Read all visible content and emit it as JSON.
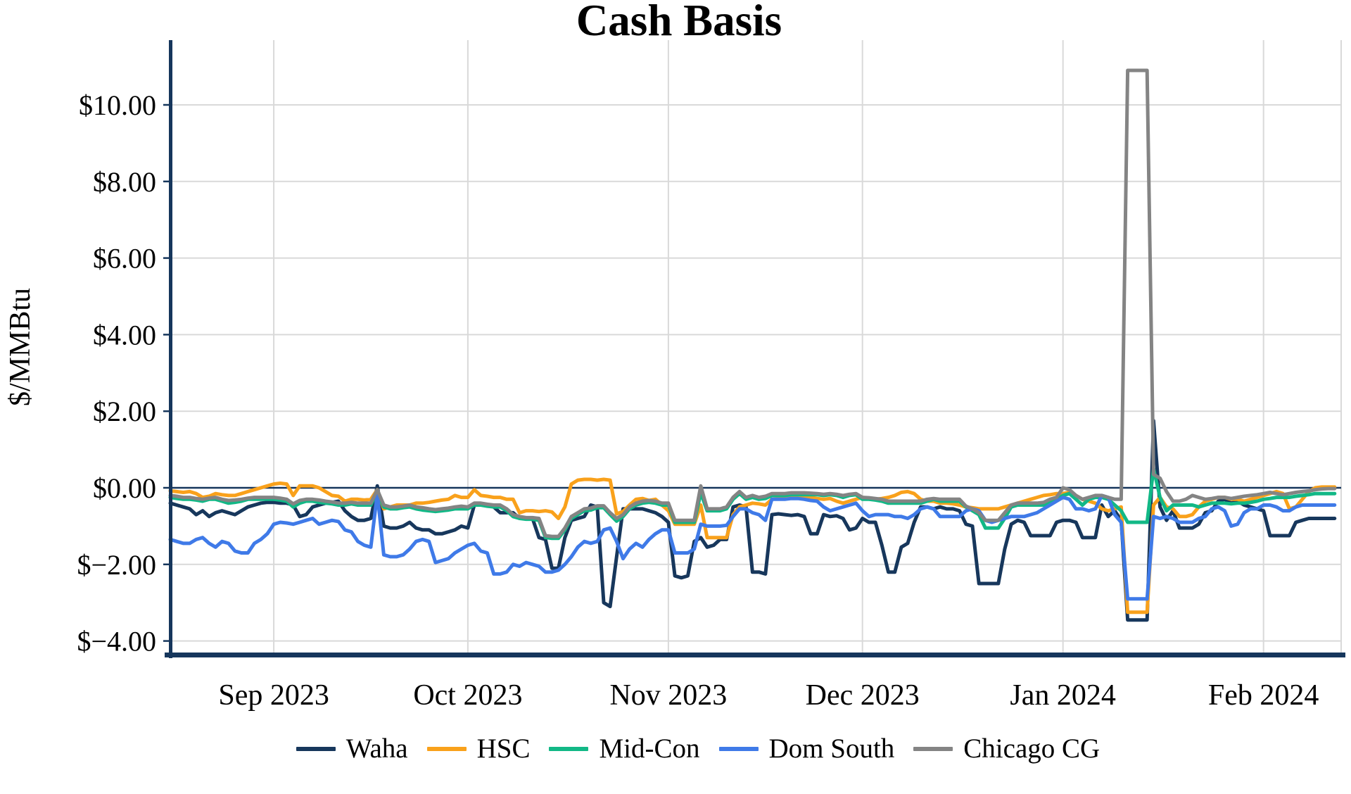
{
  "title": "Cash Basis",
  "y_axis": {
    "label": "$/MMBtu"
  },
  "colors": {
    "axis": "#16365C",
    "gridline": "#D9D9D9",
    "zero_line": "#16365C",
    "text": "#000000"
  },
  "chart_data": {
    "type": "line",
    "title": "Cash Basis",
    "ylabel": "$/MMBtu",
    "x_start": "2023-08-16",
    "x_end": "2024-02-12",
    "frequency": "daily",
    "n_points": 181,
    "ylim": [
      -4.3,
      11.7
    ],
    "grid": true,
    "legend_position": "bottom",
    "y_ticks": {
      "values": [
        10,
        8,
        6,
        4,
        2,
        0,
        -2,
        -4
      ],
      "labels": [
        "$10.00",
        "$8.00",
        "$6.00",
        "$4.00",
        "$2.00",
        "$0.00",
        "$−2.00",
        "$−4.00"
      ]
    },
    "x_ticks": [
      {
        "label": "Sep 2023",
        "day_index": 16
      },
      {
        "label": "Oct 2023",
        "day_index": 46
      },
      {
        "label": "Nov 2023",
        "day_index": 77
      },
      {
        "label": "Dec 2023",
        "day_index": 107
      },
      {
        "label": "Jan 2024",
        "day_index": 138
      },
      {
        "label": "Feb 2024",
        "day_index": 169
      }
    ],
    "series": [
      {
        "name": "Waha",
        "color": "#17375C",
        "values": [
          -0.4,
          -0.45,
          -0.5,
          -0.55,
          -0.7,
          -0.6,
          -0.75,
          -0.65,
          -0.6,
          -0.65,
          -0.7,
          -0.6,
          -0.5,
          -0.45,
          -0.4,
          -0.38,
          -0.38,
          -0.4,
          -0.4,
          -0.45,
          -0.75,
          -0.7,
          -0.5,
          -0.45,
          -0.4,
          -0.38,
          -0.35,
          -0.6,
          -0.75,
          -0.85,
          -0.85,
          -0.8,
          0.05,
          -1.0,
          -1.05,
          -1.05,
          -1.0,
          -0.9,
          -1.05,
          -1.1,
          -1.1,
          -1.2,
          -1.2,
          -1.15,
          -1.1,
          -1.0,
          -1.05,
          -0.45,
          -0.45,
          -0.45,
          -0.5,
          -0.65,
          -0.65,
          -0.65,
          -0.8,
          -0.8,
          -0.8,
          -1.3,
          -1.35,
          -2.1,
          -2.1,
          -1.3,
          -0.85,
          -0.8,
          -0.75,
          -0.45,
          -0.5,
          -3.0,
          -3.1,
          -1.8,
          -0.55,
          -0.55,
          -0.55,
          -0.55,
          -0.6,
          -0.65,
          -0.75,
          -0.9,
          -2.3,
          -2.35,
          -2.3,
          -1.4,
          -1.3,
          -1.55,
          -1.5,
          -1.35,
          -1.35,
          -0.5,
          -0.45,
          -0.5,
          -2.2,
          -2.2,
          -2.25,
          -0.7,
          -0.68,
          -0.7,
          -0.72,
          -0.7,
          -0.75,
          -1.2,
          -1.2,
          -0.7,
          -0.75,
          -0.73,
          -0.8,
          -1.1,
          -1.05,
          -0.8,
          -0.9,
          -0.9,
          -1.5,
          -2.2,
          -2.2,
          -1.55,
          -1.45,
          -0.9,
          -0.5,
          -0.5,
          -0.55,
          -0.5,
          -0.55,
          -0.55,
          -0.6,
          -0.95,
          -1.0,
          -2.5,
          -2.5,
          -2.5,
          -2.5,
          -1.6,
          -0.95,
          -0.85,
          -0.9,
          -1.25,
          -1.25,
          -1.25,
          -1.25,
          -0.9,
          -0.85,
          -0.85,
          -0.9,
          -1.3,
          -1.3,
          -1.3,
          -0.45,
          -0.75,
          -0.6,
          -0.85,
          -3.45,
          -3.45,
          -3.45,
          -3.45,
          1.75,
          -0.5,
          -0.85,
          -0.6,
          -1.05,
          -1.05,
          -1.05,
          -0.95,
          -0.65,
          -0.6,
          -0.35,
          -0.3,
          -0.4,
          -0.35,
          -0.45,
          -0.5,
          -0.55,
          -0.6,
          -1.25,
          -1.25,
          -1.25,
          -1.25,
          -0.9,
          -0.85,
          -0.8,
          -0.8,
          -0.8,
          -0.8,
          -0.8
        ]
      },
      {
        "name": "HSC",
        "color": "#F9A11B",
        "values": [
          -0.08,
          -0.1,
          -0.12,
          -0.1,
          -0.15,
          -0.25,
          -0.22,
          -0.15,
          -0.18,
          -0.2,
          -0.2,
          -0.15,
          -0.1,
          -0.05,
          0.0,
          0.05,
          0.1,
          0.12,
          0.1,
          -0.2,
          0.05,
          0.05,
          0.05,
          0.0,
          -0.1,
          -0.2,
          -0.22,
          -0.35,
          -0.3,
          -0.3,
          -0.32,
          -0.3,
          -0.05,
          -0.55,
          -0.5,
          -0.45,
          -0.45,
          -0.45,
          -0.4,
          -0.4,
          -0.38,
          -0.35,
          -0.32,
          -0.3,
          -0.2,
          -0.25,
          -0.25,
          -0.05,
          -0.2,
          -0.22,
          -0.25,
          -0.25,
          -0.3,
          -0.3,
          -0.65,
          -0.6,
          -0.6,
          -0.62,
          -0.6,
          -0.63,
          -0.8,
          -0.5,
          0.1,
          0.2,
          0.22,
          0.22,
          0.2,
          0.22,
          0.2,
          -0.68,
          -0.62,
          -0.45,
          -0.3,
          -0.28,
          -0.33,
          -0.3,
          -0.45,
          -0.6,
          -0.95,
          -0.95,
          -0.95,
          -0.95,
          -0.45,
          -1.3,
          -1.3,
          -1.3,
          -1.3,
          -0.7,
          -0.5,
          -0.45,
          -0.4,
          -0.42,
          -0.45,
          -0.3,
          -0.28,
          -0.28,
          -0.25,
          -0.25,
          -0.25,
          -0.25,
          -0.28,
          -0.3,
          -0.28,
          -0.35,
          -0.4,
          -0.35,
          -0.3,
          -0.25,
          -0.28,
          -0.3,
          -0.28,
          -0.25,
          -0.2,
          -0.12,
          -0.1,
          -0.15,
          -0.3,
          -0.35,
          -0.35,
          -0.4,
          -0.4,
          -0.42,
          -0.45,
          -0.5,
          -0.52,
          -0.55,
          -0.55,
          -0.55,
          -0.55,
          -0.5,
          -0.45,
          -0.4,
          -0.35,
          -0.3,
          -0.25,
          -0.2,
          -0.18,
          -0.15,
          -0.15,
          -0.12,
          -0.2,
          -0.3,
          -0.35,
          -0.4,
          -0.55,
          -0.6,
          -0.55,
          -0.5,
          -3.25,
          -3.25,
          -3.25,
          -3.25,
          -0.45,
          -0.25,
          -0.5,
          -0.55,
          -0.75,
          -0.75,
          -0.7,
          -0.5,
          -0.35,
          -0.3,
          -0.25,
          -0.25,
          -0.3,
          -0.3,
          -0.35,
          -0.3,
          -0.25,
          -0.2,
          -0.15,
          -0.1,
          -0.15,
          -0.55,
          -0.5,
          -0.3,
          -0.1,
          0.0,
          0.02,
          0.02,
          0.02
        ]
      },
      {
        "name": "Mid-Con",
        "color": "#12B886",
        "values": [
          -0.25,
          -0.28,
          -0.3,
          -0.3,
          -0.32,
          -0.35,
          -0.3,
          -0.3,
          -0.35,
          -0.4,
          -0.38,
          -0.35,
          -0.3,
          -0.3,
          -0.3,
          -0.3,
          -0.3,
          -0.32,
          -0.35,
          -0.5,
          -0.4,
          -0.35,
          -0.35,
          -0.38,
          -0.4,
          -0.42,
          -0.45,
          -0.45,
          -0.42,
          -0.45,
          -0.45,
          -0.45,
          -0.1,
          -0.5,
          -0.55,
          -0.55,
          -0.52,
          -0.5,
          -0.55,
          -0.58,
          -0.6,
          -0.62,
          -0.6,
          -0.58,
          -0.55,
          -0.55,
          -0.55,
          -0.45,
          -0.45,
          -0.48,
          -0.5,
          -0.5,
          -0.6,
          -0.75,
          -0.8,
          -0.82,
          -0.82,
          -0.85,
          -1.3,
          -1.32,
          -1.32,
          -1.1,
          -0.8,
          -0.7,
          -0.6,
          -0.58,
          -0.52,
          -0.52,
          -0.7,
          -0.87,
          -0.75,
          -0.55,
          -0.45,
          -0.4,
          -0.38,
          -0.4,
          -0.45,
          -0.45,
          -0.9,
          -0.9,
          -0.9,
          -0.9,
          -0.13,
          -0.6,
          -0.6,
          -0.6,
          -0.55,
          -0.3,
          -0.15,
          -0.3,
          -0.25,
          -0.3,
          -0.28,
          -0.2,
          -0.2,
          -0.2,
          -0.18,
          -0.18,
          -0.18,
          -0.18,
          -0.18,
          -0.2,
          -0.18,
          -0.2,
          -0.25,
          -0.2,
          -0.18,
          -0.3,
          -0.3,
          -0.32,
          -0.35,
          -0.4,
          -0.4,
          -0.4,
          -0.4,
          -0.4,
          -0.4,
          -0.35,
          -0.3,
          -0.35,
          -0.35,
          -0.35,
          -0.35,
          -0.5,
          -0.6,
          -0.7,
          -1.05,
          -1.05,
          -1.05,
          -0.8,
          -0.5,
          -0.45,
          -0.45,
          -0.45,
          -0.45,
          -0.45,
          -0.35,
          -0.3,
          -0.2,
          -0.15,
          -0.3,
          -0.45,
          -0.3,
          -0.25,
          -0.25,
          -0.3,
          -0.45,
          -0.6,
          -0.9,
          -0.9,
          -0.9,
          -0.9,
          0.5,
          -0.25,
          -0.6,
          -0.45,
          -0.45,
          -0.45,
          -0.45,
          -0.5,
          -0.45,
          -0.4,
          -0.4,
          -0.4,
          -0.42,
          -0.4,
          -0.4,
          -0.38,
          -0.35,
          -0.3,
          -0.28,
          -0.25,
          -0.25,
          -0.25,
          -0.22,
          -0.2,
          -0.18,
          -0.15,
          -0.15,
          -0.15,
          -0.15
        ]
      },
      {
        "name": "Dom South",
        "color": "#3F7AE8",
        "values": [
          -1.35,
          -1.4,
          -1.45,
          -1.45,
          -1.35,
          -1.3,
          -1.45,
          -1.55,
          -1.4,
          -1.45,
          -1.65,
          -1.7,
          -1.7,
          -1.45,
          -1.35,
          -1.2,
          -0.95,
          -0.9,
          -0.92,
          -0.95,
          -0.9,
          -0.85,
          -0.8,
          -0.95,
          -0.9,
          -0.85,
          -0.88,
          -1.1,
          -1.15,
          -1.4,
          -1.5,
          -1.55,
          -0.15,
          -1.75,
          -1.8,
          -1.8,
          -1.75,
          -1.6,
          -1.4,
          -1.35,
          -1.4,
          -1.95,
          -1.9,
          -1.85,
          -1.7,
          -1.6,
          -1.5,
          -1.45,
          -1.65,
          -1.7,
          -2.25,
          -2.25,
          -2.2,
          -2.0,
          -2.05,
          -1.95,
          -2.0,
          -2.05,
          -2.2,
          -2.2,
          -2.15,
          -2.0,
          -1.8,
          -1.55,
          -1.4,
          -1.45,
          -1.4,
          -1.1,
          -1.05,
          -1.4,
          -1.85,
          -1.6,
          -1.45,
          -1.55,
          -1.35,
          -1.2,
          -1.1,
          -1.1,
          -1.7,
          -1.7,
          -1.7,
          -1.6,
          -0.95,
          -1.0,
          -1.0,
          -1.0,
          -0.98,
          -0.75,
          -0.55,
          -0.55,
          -0.65,
          -0.7,
          -0.85,
          -0.3,
          -0.3,
          -0.3,
          -0.28,
          -0.28,
          -0.3,
          -0.33,
          -0.35,
          -0.5,
          -0.6,
          -0.55,
          -0.5,
          -0.45,
          -0.4,
          -0.6,
          -0.75,
          -0.7,
          -0.7,
          -0.7,
          -0.75,
          -0.75,
          -0.8,
          -0.7,
          -0.55,
          -0.5,
          -0.55,
          -0.75,
          -0.75,
          -0.75,
          -0.75,
          -0.6,
          -0.55,
          -0.6,
          -0.85,
          -0.9,
          -0.85,
          -0.8,
          -0.75,
          -0.75,
          -0.75,
          -0.7,
          -0.65,
          -0.55,
          -0.45,
          -0.35,
          -0.25,
          -0.3,
          -0.55,
          -0.55,
          -0.6,
          -0.55,
          -0.2,
          -0.25,
          -0.7,
          -0.9,
          -2.9,
          -2.9,
          -2.9,
          -2.9,
          -0.75,
          -0.8,
          -0.75,
          -0.8,
          -0.9,
          -0.9,
          -0.9,
          -0.8,
          -0.75,
          -0.55,
          -0.5,
          -0.6,
          -1.0,
          -0.95,
          -0.65,
          -0.55,
          -0.55,
          -0.45,
          -0.45,
          -0.5,
          -0.6,
          -0.6,
          -0.5,
          -0.45,
          -0.45,
          -0.45,
          -0.45,
          -0.45,
          -0.45
        ]
      },
      {
        "name": "Chicago CG",
        "color": "#848484",
        "values": [
          -0.2,
          -0.22,
          -0.25,
          -0.25,
          -0.28,
          -0.3,
          -0.27,
          -0.25,
          -0.3,
          -0.33,
          -0.32,
          -0.3,
          -0.27,
          -0.25,
          -0.25,
          -0.25,
          -0.25,
          -0.27,
          -0.3,
          -0.42,
          -0.33,
          -0.3,
          -0.3,
          -0.32,
          -0.35,
          -0.37,
          -0.4,
          -0.4,
          -0.38,
          -0.4,
          -0.4,
          -0.4,
          -0.05,
          -0.45,
          -0.5,
          -0.5,
          -0.48,
          -0.45,
          -0.5,
          -0.52,
          -0.55,
          -0.57,
          -0.55,
          -0.53,
          -0.5,
          -0.48,
          -0.5,
          -0.4,
          -0.4,
          -0.43,
          -0.45,
          -0.45,
          -0.55,
          -0.7,
          -0.75,
          -0.78,
          -0.78,
          -0.8,
          -1.25,
          -1.27,
          -1.27,
          -1.05,
          -0.75,
          -0.65,
          -0.55,
          -0.53,
          -0.47,
          -0.47,
          -0.65,
          -0.8,
          -0.7,
          -0.5,
          -0.4,
          -0.35,
          -0.33,
          -0.35,
          -0.4,
          -0.4,
          -0.85,
          -0.85,
          -0.85,
          -0.85,
          0.05,
          -0.55,
          -0.55,
          -0.55,
          -0.5,
          -0.25,
          -0.1,
          -0.25,
          -0.2,
          -0.25,
          -0.22,
          -0.15,
          -0.15,
          -0.15,
          -0.13,
          -0.13,
          -0.13,
          -0.14,
          -0.15,
          -0.17,
          -0.15,
          -0.17,
          -0.2,
          -0.17,
          -0.15,
          -0.25,
          -0.26,
          -0.28,
          -0.3,
          -0.35,
          -0.35,
          -0.35,
          -0.35,
          -0.35,
          -0.35,
          -0.3,
          -0.28,
          -0.3,
          -0.3,
          -0.3,
          -0.3,
          -0.48,
          -0.55,
          -0.65,
          -0.85,
          -0.85,
          -0.85,
          -0.65,
          -0.45,
          -0.4,
          -0.4,
          -0.4,
          -0.4,
          -0.38,
          -0.3,
          -0.25,
          0.0,
          -0.05,
          -0.2,
          -0.3,
          -0.25,
          -0.2,
          -0.2,
          -0.25,
          -0.3,
          -0.3,
          10.9,
          10.9,
          10.9,
          10.9,
          0.35,
          0.25,
          -0.1,
          -0.35,
          -0.35,
          -0.3,
          -0.2,
          -0.25,
          -0.3,
          -0.28,
          -0.25,
          -0.25,
          -0.28,
          -0.25,
          -0.22,
          -0.2,
          -0.18,
          -0.15,
          -0.12,
          -0.15,
          -0.18,
          -0.15,
          -0.12,
          -0.1,
          -0.08,
          -0.05,
          -0.03,
          -0.02,
          -0.02
        ]
      }
    ]
  }
}
